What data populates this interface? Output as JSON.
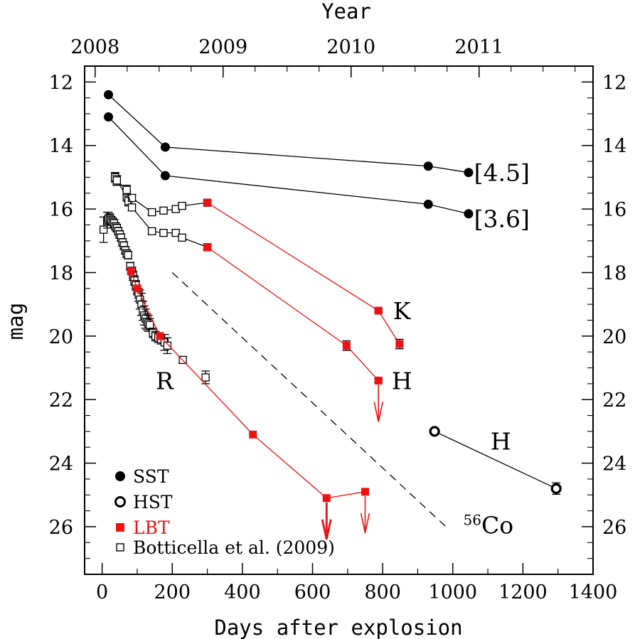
{
  "chart_data": {
    "type": "scatter",
    "xlabel": "Days after explosion",
    "ylabel": "mag",
    "top_axis_label": "Year",
    "xlim": [
      -50,
      1400
    ],
    "ylim": [
      27.5,
      11.5
    ],
    "y_inverted": true,
    "x_ticks": [
      0,
      200,
      400,
      600,
      800,
      1000,
      1200,
      1400
    ],
    "y_ticks": [
      12,
      14,
      16,
      18,
      20,
      22,
      24,
      26
    ],
    "top_ticks": [
      {
        "label": "2008",
        "day": -20
      },
      {
        "label": "2009",
        "day": 345
      },
      {
        "label": "2010",
        "day": 710
      },
      {
        "label": "2011",
        "day": 1075
      }
    ],
    "colors": {
      "black": "#000000",
      "red": "#ee1111"
    },
    "band_labels": [
      {
        "text": "[4.5]",
        "x": 1140,
        "y": 14.85
      },
      {
        "text": "[3.6]",
        "x": 1140,
        "y": 16.3
      },
      {
        "text": "K",
        "x": 855,
        "y": 19.2
      },
      {
        "text": "H",
        "x": 855,
        "y": 21.4
      },
      {
        "text": "R",
        "x": 178,
        "y": 21.4
      },
      {
        "text": "H",
        "x": 1137,
        "y": 23.3
      }
    ],
    "co56_label": {
      "prefix": "56",
      "text": "Co",
      "x": 1030,
      "y": 25.95
    },
    "co56_line": {
      "x": [
        200,
        990
      ],
      "y": [
        18.0,
        26.1
      ]
    },
    "legend": [
      {
        "label": "SST",
        "marker": "filled-circle",
        "color": "#000000"
      },
      {
        "label": "HST",
        "marker": "open-circle",
        "color": "#000000"
      },
      {
        "label": "LBT",
        "marker": "filled-square",
        "color": "#ee1111"
      },
      {
        "label": "Botticella et al. (2009)",
        "marker": "open-square",
        "color": "#000000"
      }
    ],
    "series": [
      {
        "marker": "filled-circle",
        "color": "#000000",
        "connect": true,
        "x": [
          18,
          180,
          930,
          1045
        ],
        "y": [
          12.4,
          14.05,
          14.65,
          14.85
        ],
        "err": [
          0,
          0,
          0,
          0
        ]
      },
      {
        "marker": "filled-circle",
        "color": "#000000",
        "connect": true,
        "x": [
          18,
          180,
          930,
          1045
        ],
        "y": [
          13.1,
          14.95,
          15.85,
          16.15
        ],
        "err": [
          0,
          0,
          0,
          0
        ]
      },
      {
        "marker": "open-circle",
        "color": "#000000",
        "connect": true,
        "x": [
          948,
          1295
        ],
        "y": [
          23.0,
          24.8
        ],
        "err": [
          0,
          0.18
        ]
      },
      {
        "marker": "open-square",
        "color": "#000000",
        "connect": true,
        "x": [
          37,
          42,
          70,
          75,
          85,
          142,
          175,
          210,
          228,
          300
        ],
        "y": [
          15.0,
          15.1,
          15.6,
          15.75,
          15.65,
          16.1,
          16.05,
          16.0,
          15.9,
          15.8
        ],
        "err": [
          0.15,
          0.15,
          0.15,
          0.15,
          0.1,
          0.08,
          0.08,
          0.08,
          0.08,
          0.08
        ]
      },
      {
        "marker": "filled-square",
        "color": "#ee1111",
        "connect": true,
        "x": [
          300,
          788,
          848
        ],
        "y": [
          15.8,
          19.2,
          20.25
        ],
        "err": [
          0,
          0.05,
          0.15
        ]
      },
      {
        "marker": "open-square",
        "color": "#000000",
        "connect": true,
        "x": [
          37,
          42,
          70,
          85,
          142,
          175,
          210,
          228,
          300
        ],
        "y": [
          15.0,
          15.1,
          15.4,
          15.95,
          16.7,
          16.75,
          16.75,
          16.9,
          17.2
        ],
        "err": [
          0.15,
          0.15,
          0.15,
          0.1,
          0.08,
          0.08,
          0.08,
          0.08,
          0.08
        ]
      },
      {
        "marker": "filled-square",
        "color": "#ee1111",
        "connect": true,
        "x": [
          300,
          697,
          788
        ],
        "y": [
          17.2,
          20.3,
          21.4
        ],
        "err": [
          0,
          0.15,
          0.05
        ]
      },
      {
        "marker": "open-square",
        "color": "#000000",
        "connect": false,
        "x": [
          4,
          15,
          18,
          22,
          26,
          30,
          34,
          38,
          42,
          46,
          50,
          54,
          58,
          62,
          66,
          70,
          74,
          80,
          85,
          88,
          92,
          96,
          100,
          104,
          108,
          112,
          116,
          120,
          124,
          128,
          132,
          136,
          145,
          152,
          160,
          168,
          178,
          186,
          230,
          295
        ],
        "y": [
          16.65,
          16.35,
          16.3,
          16.3,
          16.35,
          16.4,
          16.45,
          16.55,
          16.6,
          16.7,
          16.8,
          16.9,
          17.05,
          17.15,
          17.3,
          17.4,
          17.45,
          17.8,
          17.95,
          18.1,
          18.25,
          18.4,
          18.55,
          18.7,
          18.85,
          19.0,
          19.2,
          19.35,
          19.45,
          19.55,
          19.6,
          19.65,
          19.9,
          20.0,
          20.05,
          20.1,
          20.2,
          20.3,
          20.75,
          21.3
        ],
        "err": [
          0.4,
          0.25,
          0.2,
          0.15,
          0.12,
          0.12,
          0.12,
          0.12,
          0.12,
          0.12,
          0.12,
          0.12,
          0.12,
          0.12,
          0.12,
          0.12,
          0.12,
          0.12,
          0.12,
          0.15,
          0.15,
          0.15,
          0.15,
          0.2,
          0.3,
          0.35,
          0.3,
          0.3,
          0.3,
          0.25,
          0.25,
          0.2,
          0.15,
          0.15,
          0.15,
          0.15,
          0.25,
          0.25,
          0.1,
          0.2
        ]
      },
      {
        "marker": "filled-square",
        "color": "#ee1111",
        "connect": true,
        "x": [
          82,
          100,
          165,
          430,
          640,
          750
        ],
        "y": [
          17.95,
          18.5,
          20.0,
          23.1,
          25.1,
          24.9
        ],
        "err": [
          0,
          0,
          0,
          0,
          0,
          0
        ]
      }
    ],
    "upper_limits": [
      {
        "x": 640,
        "y": 25.1,
        "color": "#ee1111",
        "bold": true
      },
      {
        "x": 750,
        "y": 24.9,
        "color": "#ee1111",
        "bold": false
      },
      {
        "x": 788,
        "y": 21.4,
        "color": "#ee1111",
        "bold": false
      }
    ]
  }
}
